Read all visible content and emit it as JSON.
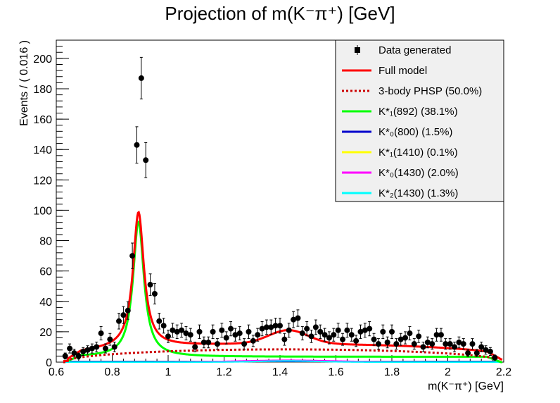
{
  "chart_data": {
    "type": "scatter",
    "title": "Projection of m(K⁻π⁺) [GeV]",
    "xlabel": "m(K⁻π⁺) [GeV]",
    "ylabel": "Events / ( 0.016 )",
    "xlim": [
      0.6,
      2.2
    ],
    "ylim": [
      0,
      212
    ],
    "x_ticks": [
      "0.6",
      "0.8",
      "1",
      "1.2",
      "1.4",
      "1.6",
      "1.8",
      "2",
      "2.2"
    ],
    "y_ticks": [
      "0",
      "20",
      "40",
      "60",
      "80",
      "100",
      "120",
      "140",
      "160",
      "180",
      "200"
    ],
    "legend_position": "top-right",
    "legend": [
      {
        "label": "Data generated",
        "style": "marker",
        "color": "#000000"
      },
      {
        "label": "Full model",
        "style": "solid",
        "color": "#ff0000"
      },
      {
        "label": "3-body PHSP (50.0%)",
        "style": "dotted",
        "color": "#cc0000"
      },
      {
        "label": "K*₁(892) (38.1%)",
        "style": "solid",
        "color": "#00ff00"
      },
      {
        "label": "K*₀(800) (1.5%)",
        "style": "solid",
        "color": "#0000cc"
      },
      {
        "label": "K*₁(1410) (0.1%)",
        "style": "solid",
        "color": "#ffff00"
      },
      {
        "label": "K*₀(1430) (2.0%)",
        "style": "solid",
        "color": "#ff00ff"
      },
      {
        "label": "K*₂(1430) (1.3%)",
        "style": "solid",
        "color": "#00ffff"
      }
    ],
    "data_points": {
      "x": [
        0.632,
        0.648,
        0.664,
        0.68,
        0.696,
        0.712,
        0.728,
        0.744,
        0.76,
        0.776,
        0.792,
        0.808,
        0.824,
        0.84,
        0.856,
        0.872,
        0.888,
        0.904,
        0.92,
        0.936,
        0.952,
        0.968,
        0.984,
        1.0,
        1.016,
        1.032,
        1.048,
        1.064,
        1.08,
        1.096,
        1.112,
        1.128,
        1.144,
        1.16,
        1.176,
        1.192,
        1.208,
        1.224,
        1.24,
        1.256,
        1.272,
        1.288,
        1.304,
        1.32,
        1.336,
        1.352,
        1.368,
        1.384,
        1.4,
        1.416,
        1.432,
        1.448,
        1.464,
        1.48,
        1.496,
        1.512,
        1.528,
        1.544,
        1.56,
        1.576,
        1.592,
        1.608,
        1.624,
        1.64,
        1.656,
        1.672,
        1.688,
        1.704,
        1.72,
        1.736,
        1.752,
        1.768,
        1.784,
        1.8,
        1.816,
        1.832,
        1.848,
        1.864,
        1.88,
        1.896,
        1.912,
        1.928,
        1.944,
        1.96,
        1.976,
        1.992,
        2.008,
        2.024,
        2.04,
        2.056,
        2.072,
        2.088,
        2.104,
        2.12,
        2.136,
        2.152,
        2.168
      ],
      "y": [
        4,
        9,
        6,
        4,
        7,
        8,
        9,
        10,
        19,
        9,
        15,
        10,
        27,
        31,
        34,
        70,
        143,
        187,
        133,
        51,
        45,
        27,
        24,
        17,
        21,
        20,
        21,
        19,
        18,
        10,
        20,
        13,
        13,
        20,
        12,
        21,
        16,
        22,
        18,
        19,
        12,
        20,
        14,
        18,
        22,
        23,
        23,
        24,
        24,
        15,
        21,
        28,
        29,
        19,
        22,
        17,
        23,
        20,
        18,
        16,
        18,
        21,
        15,
        21,
        18,
        14,
        20,
        21,
        22,
        15,
        12,
        20,
        13,
        20,
        12,
        15,
        16,
        19,
        12,
        17,
        10,
        13,
        12,
        18,
        18,
        12,
        12,
        10,
        13,
        12,
        6,
        12,
        6,
        10,
        8,
        7,
        3
      ],
      "errors": [
        2,
        3,
        2.5,
        2,
        2.6,
        2.8,
        3,
        3.2,
        4.4,
        3,
        3.9,
        3.2,
        5.2,
        5.6,
        5.8,
        8.4,
        12,
        13.7,
        11.5,
        7.1,
        6.7,
        5.2,
        4.9,
        4.1,
        4.6,
        4.5,
        4.6,
        4.4,
        4.2,
        3.2,
        4.5,
        3.6,
        3.6,
        4.5,
        3.5,
        4.6,
        4,
        4.7,
        4.2,
        4.4,
        3.5,
        4.5,
        3.7,
        4.2,
        4.7,
        4.8,
        4.8,
        4.9,
        4.9,
        3.9,
        4.6,
        5.3,
        5.4,
        4.4,
        4.7,
        4.1,
        4.8,
        4.5,
        4.2,
        4,
        4.2,
        4.6,
        3.9,
        4.6,
        4.2,
        3.7,
        4.5,
        4.6,
        4.7,
        3.9,
        3.5,
        4.5,
        3.6,
        4.5,
        3.5,
        3.9,
        4,
        4.4,
        3.5,
        4.1,
        3.2,
        3.6,
        3.5,
        4.2,
        4.2,
        3.5,
        3.5,
        3.2,
        3.6,
        3.5,
        2.4,
        3.5,
        2.4,
        3.2,
        2.8,
        2.6,
        1.7
      ]
    }
  }
}
